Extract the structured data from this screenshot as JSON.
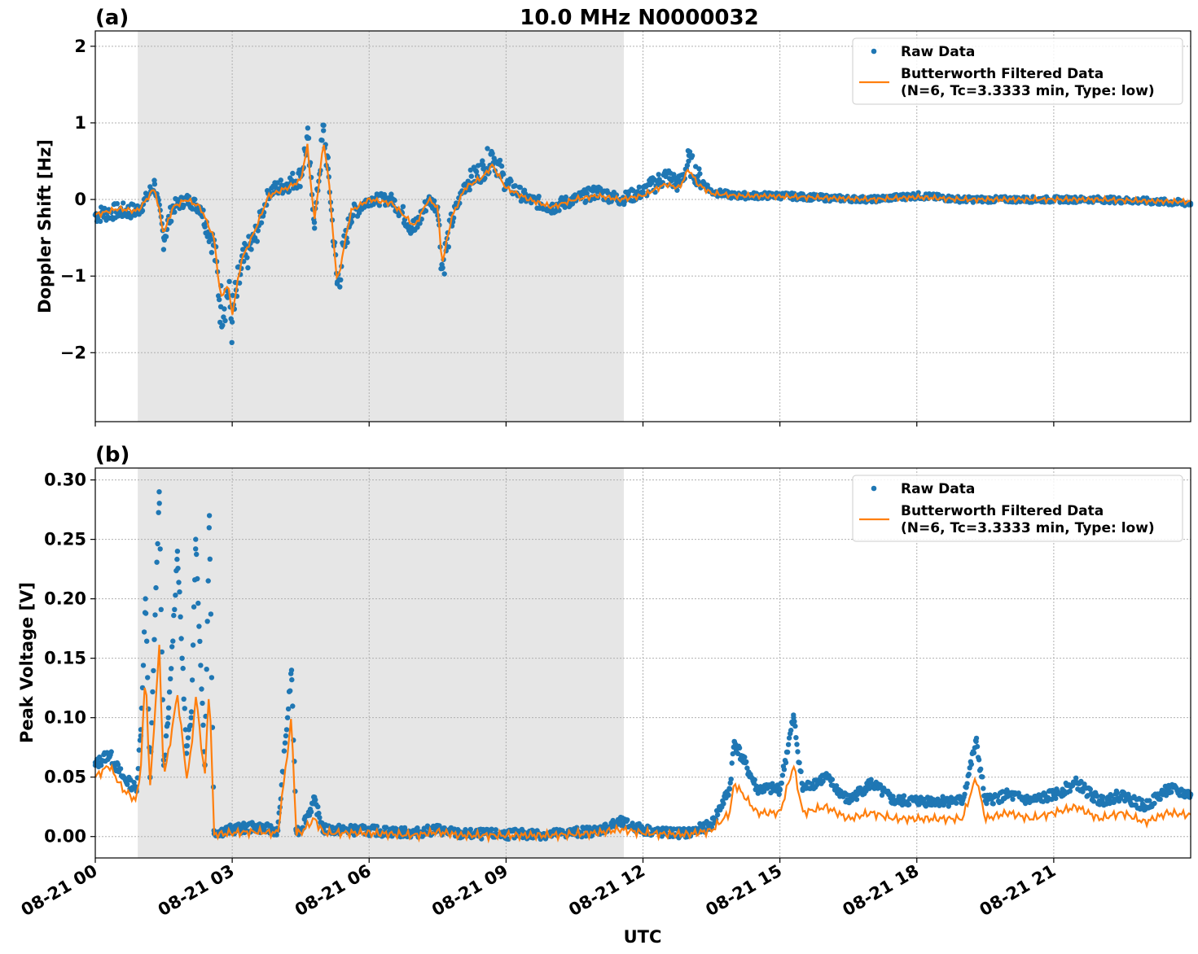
{
  "figure": {
    "title": "10.0 MHz N0000032",
    "xlabel": "UTC",
    "x_tick_labels": [
      "08-21 00",
      "08-21 03",
      "08-21 06",
      "08-21 09",
      "08-21 12",
      "08-21 15",
      "08-21 18",
      "08-21 21"
    ]
  },
  "colors": {
    "raw": "#1f77b4",
    "filtered": "#ff7f0e",
    "shade": "#e6e6e6",
    "grid": "#b0b0b0"
  },
  "legend": {
    "raw_label": "Raw Data",
    "filtered_label_line1": "Butterworth Filtered Data",
    "filtered_label_line2": "(N=6, Tc=3.3333 min, Type: low)"
  },
  "chart_data": [
    {
      "type": "scatter",
      "panel_label": "(a)",
      "ylabel": "Doppler Shift [Hz]",
      "y_tick_labels": [
        "−2",
        "−1",
        "0",
        "1",
        "2"
      ],
      "y_ticks": [
        -2,
        -1,
        0,
        1,
        2
      ],
      "xlim_hours": [
        0,
        24
      ],
      "ylim": [
        -2.9,
        2.2
      ],
      "shaded_region_hours": [
        0.93,
        11.58
      ],
      "grid": true,
      "legend_position": "top-right",
      "series": [
        {
          "name": "Raw Data",
          "style": "points",
          "hours": [
            0,
            0.5,
            0.9,
            1.0,
            1.3,
            1.5,
            1.7,
            2.0,
            2.3,
            2.6,
            2.75,
            2.9,
            3.0,
            3.2,
            3.5,
            3.8,
            4.2,
            4.5,
            4.65,
            4.8,
            5.0,
            5.1,
            5.3,
            5.6,
            6.0,
            6.5,
            7.0,
            7.3,
            7.5,
            7.6,
            7.8,
            8.1,
            8.5,
            8.7,
            9.0,
            9.5,
            10.0,
            10.5,
            11.0,
            11.5,
            12.0,
            12.5,
            12.8,
            13.0,
            13.2,
            13.5,
            14.0,
            15.0,
            16.0,
            17.0,
            18.0,
            19.0,
            20.0,
            21.0,
            22.0,
            23.0,
            24.0
          ],
          "values": [
            -0.2,
            -0.15,
            -0.15,
            -0.1,
            0.2,
            -0.5,
            -0.1,
            0.0,
            -0.1,
            -0.6,
            -1.4,
            -1.2,
            -1.6,
            -0.9,
            -0.5,
            0.1,
            0.2,
            0.3,
            0.8,
            -0.3,
            0.9,
            0.4,
            -1.1,
            -0.2,
            0.0,
            0.0,
            -0.4,
            0.0,
            -0.1,
            -0.9,
            -0.3,
            0.2,
            0.4,
            0.6,
            0.2,
            0.0,
            -0.1,
            0.0,
            0.1,
            0.0,
            0.1,
            0.3,
            0.2,
            0.5,
            0.3,
            0.1,
            0.05,
            0.05,
            0.02,
            0.0,
            0.05,
            0.0,
            0.0,
            0.0,
            0.0,
            -0.02,
            -0.05
          ]
        },
        {
          "name": "Butterworth Filtered Data",
          "style": "line",
          "hours": [
            0,
            0.5,
            0.9,
            1.0,
            1.3,
            1.5,
            1.7,
            2.0,
            2.3,
            2.6,
            2.75,
            2.9,
            3.0,
            3.2,
            3.5,
            3.8,
            4.2,
            4.5,
            4.65,
            4.8,
            5.0,
            5.1,
            5.3,
            5.6,
            6.0,
            6.5,
            7.0,
            7.3,
            7.5,
            7.6,
            7.8,
            8.1,
            8.5,
            8.7,
            9.0,
            9.5,
            10.0,
            10.5,
            11.0,
            11.5,
            12.0,
            12.5,
            12.8,
            13.0,
            13.2,
            13.5,
            14.0,
            15.0,
            16.0,
            17.0,
            18.0,
            19.0,
            20.0,
            21.0,
            22.0,
            23.0,
            24.0
          ],
          "values": [
            -0.2,
            -0.12,
            -0.15,
            -0.1,
            0.15,
            -0.45,
            -0.1,
            0.0,
            -0.1,
            -0.5,
            -1.3,
            -1.1,
            -1.5,
            -0.8,
            -0.4,
            0.05,
            0.15,
            0.25,
            0.7,
            -0.3,
            0.75,
            0.35,
            -1.1,
            -0.15,
            0.0,
            -0.05,
            -0.35,
            0.0,
            -0.1,
            -0.85,
            -0.25,
            0.15,
            0.3,
            0.45,
            0.15,
            0.0,
            -0.1,
            0.0,
            0.05,
            0.0,
            0.05,
            0.2,
            0.15,
            0.4,
            0.2,
            0.08,
            0.05,
            0.04,
            0.02,
            0.0,
            0.03,
            0.0,
            0.0,
            0.0,
            0.0,
            -0.02,
            -0.03
          ]
        }
      ]
    },
    {
      "type": "scatter",
      "panel_label": "(b)",
      "ylabel": "Peak Voltage [V]",
      "y_tick_labels": [
        "0.00",
        "0.05",
        "0.10",
        "0.15",
        "0.20",
        "0.25",
        "0.30"
      ],
      "y_ticks": [
        0.0,
        0.05,
        0.1,
        0.15,
        0.2,
        0.25,
        0.3
      ],
      "xlim_hours": [
        0,
        24
      ],
      "ylim": [
        -0.018,
        0.31
      ],
      "shaded_region_hours": [
        0.93,
        11.58
      ],
      "grid": true,
      "legend_position": "top-right",
      "series": [
        {
          "name": "Raw Data",
          "style": "points",
          "hours": [
            0,
            0.3,
            0.6,
            0.9,
            1.0,
            1.1,
            1.2,
            1.4,
            1.5,
            1.6,
            1.8,
            2.0,
            2.1,
            2.2,
            2.4,
            2.5,
            2.6,
            2.7,
            3.0,
            3.5,
            4.0,
            4.3,
            4.4,
            4.5,
            4.8,
            5.0,
            6.0,
            7.0,
            7.5,
            8.0,
            9.0,
            10.0,
            11.0,
            11.5,
            12.0,
            12.5,
            13.0,
            13.5,
            13.9,
            14.0,
            14.5,
            15.0,
            15.3,
            15.5,
            16.0,
            16.5,
            17.0,
            17.5,
            18.0,
            18.5,
            19.0,
            19.3,
            19.5,
            20.0,
            20.5,
            21.0,
            21.5,
            22.0,
            22.5,
            23.0,
            23.5,
            24.0
          ],
          "values": [
            0.06,
            0.07,
            0.05,
            0.04,
            0.09,
            0.2,
            0.05,
            0.29,
            0.06,
            0.1,
            0.24,
            0.07,
            0.1,
            0.25,
            0.06,
            0.27,
            0.005,
            0.004,
            0.006,
            0.008,
            0.005,
            0.14,
            0.005,
            0.006,
            0.03,
            0.006,
            0.005,
            0.003,
            0.006,
            0.002,
            0.002,
            0.002,
            0.005,
            0.012,
            0.006,
            0.003,
            0.003,
            0.01,
            0.04,
            0.08,
            0.04,
            0.04,
            0.1,
            0.04,
            0.05,
            0.03,
            0.045,
            0.03,
            0.03,
            0.03,
            0.03,
            0.08,
            0.03,
            0.035,
            0.03,
            0.035,
            0.045,
            0.03,
            0.035,
            0.025,
            0.04,
            0.035
          ]
        },
        {
          "name": "Butterworth Filtered Data",
          "style": "line",
          "hours": [
            0,
            0.3,
            0.6,
            0.9,
            1.0,
            1.1,
            1.2,
            1.4,
            1.5,
            1.6,
            1.8,
            2.0,
            2.1,
            2.2,
            2.4,
            2.5,
            2.6,
            2.7,
            3.0,
            3.5,
            4.0,
            4.3,
            4.4,
            4.5,
            4.8,
            5.0,
            6.0,
            7.0,
            7.5,
            8.0,
            9.0,
            10.0,
            11.0,
            11.5,
            12.0,
            12.5,
            13.0,
            13.5,
            13.9,
            14.0,
            14.5,
            15.0,
            15.3,
            15.5,
            16.0,
            16.5,
            17.0,
            17.5,
            18.0,
            18.5,
            19.0,
            19.3,
            19.5,
            20.0,
            20.5,
            21.0,
            21.5,
            22.0,
            22.5,
            23.0,
            23.5,
            24.0
          ],
          "values": [
            0.05,
            0.06,
            0.04,
            0.03,
            0.06,
            0.14,
            0.04,
            0.16,
            0.05,
            0.07,
            0.12,
            0.05,
            0.07,
            0.12,
            0.05,
            0.13,
            0.002,
            0.002,
            0.003,
            0.004,
            0.003,
            0.1,
            0.003,
            0.003,
            0.015,
            0.003,
            0.003,
            0.001,
            0.004,
            0.001,
            0.001,
            0.001,
            0.003,
            0.006,
            0.003,
            0.002,
            0.002,
            0.005,
            0.02,
            0.045,
            0.02,
            0.02,
            0.06,
            0.02,
            0.025,
            0.015,
            0.02,
            0.015,
            0.015,
            0.015,
            0.015,
            0.05,
            0.015,
            0.02,
            0.015,
            0.02,
            0.025,
            0.015,
            0.02,
            0.012,
            0.02,
            0.018
          ]
        }
      ]
    }
  ]
}
